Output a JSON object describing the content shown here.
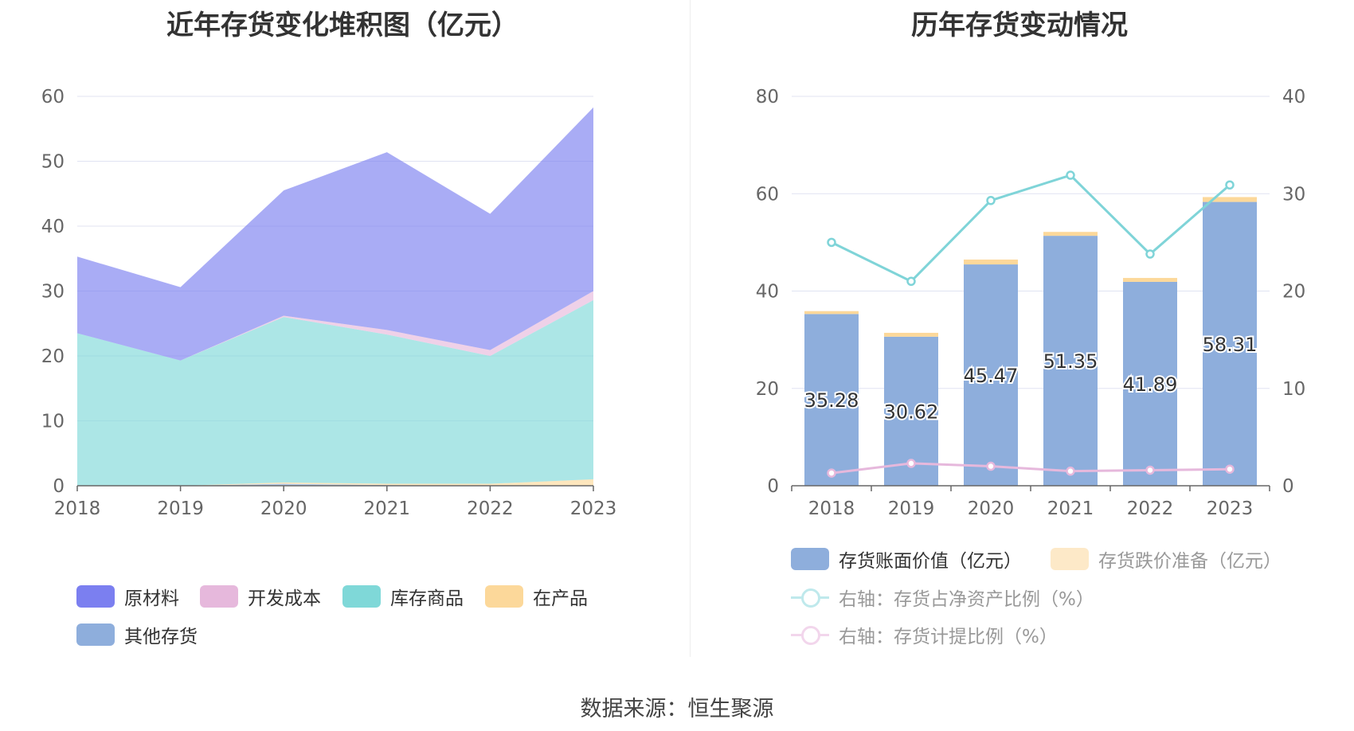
{
  "left": {
    "title": "近年存货变化堆积图（亿元）",
    "legend": [
      {
        "label": "原材料",
        "color": "#7b7ff0"
      },
      {
        "label": "开发成本",
        "color": "#e6b8dc"
      },
      {
        "label": "库存商品",
        "color": "#7fd8d8"
      },
      {
        "label": "在产品",
        "color": "#fcd89a"
      },
      {
        "label": "其他存货",
        "color": "#8eaedc"
      }
    ]
  },
  "right": {
    "title": "历年存货变动情况",
    "legend": {
      "bar1": "存货账面价值（亿元）",
      "bar2": "存货跌价准备（亿元）",
      "line1": "右轴：存货占净资产比例（%）",
      "line2": "右轴：存货计提比例（%）"
    }
  },
  "source": "数据来源：恒生聚源",
  "chart_data": [
    {
      "type": "area",
      "stacked": true,
      "title": "近年存货变化堆积图（亿元）",
      "x": [
        "2018",
        "2019",
        "2020",
        "2021",
        "2022",
        "2023"
      ],
      "ylim": [
        0,
        60
      ],
      "yticks": [
        0,
        10,
        20,
        30,
        40,
        50,
        60
      ],
      "grid": true,
      "legend_position": "bottom",
      "series": [
        {
          "name": "其他存货",
          "color": "#8eaedc",
          "values": [
            0,
            0,
            0.3,
            0.1,
            0,
            0
          ]
        },
        {
          "name": "在产品",
          "color": "#fcd89a",
          "values": [
            0,
            0,
            0.2,
            0.2,
            0.3,
            1.0
          ]
        },
        {
          "name": "库存商品",
          "color": "#7fd8d8",
          "values": [
            23.5,
            19.3,
            25.5,
            23.0,
            19.7,
            27.6
          ]
        },
        {
          "name": "开发成本",
          "color": "#e6b8dc",
          "values": [
            0,
            0,
            0.2,
            0.7,
            0.9,
            1.4
          ]
        },
        {
          "name": "原材料",
          "color": "#7b7ff0",
          "values": [
            11.8,
            11.3,
            19.3,
            27.4,
            21.0,
            28.3
          ]
        }
      ]
    },
    {
      "type": "bar",
      "stacked": true,
      "title": "历年存货变动情况",
      "categories": [
        "2018",
        "2019",
        "2020",
        "2021",
        "2022",
        "2023"
      ],
      "ylim": [
        0,
        80
      ],
      "yticks": [
        0,
        20,
        40,
        60,
        80
      ],
      "y2lim": [
        0,
        40
      ],
      "y2ticks": [
        0,
        10,
        20,
        30,
        40
      ],
      "grid": true,
      "legend_position": "bottom",
      "series": [
        {
          "name": "存货账面价值（亿元）",
          "axis": "left",
          "color": "#8eaedc",
          "values": [
            35.28,
            30.62,
            45.47,
            51.35,
            41.89,
            58.31
          ],
          "labels": [
            "35.28",
            "30.62",
            "45.47",
            "51.35",
            "41.89",
            "58.31"
          ]
        },
        {
          "name": "存货跌价准备（亿元）",
          "axis": "left",
          "color": "#fcd89a",
          "values": [
            0.6,
            0.8,
            1.0,
            0.8,
            0.8,
            1.0
          ]
        },
        {
          "name": "右轴：存货占净资产比例（%）",
          "axis": "right",
          "type": "line",
          "color": "#7fd4d8",
          "values": [
            25.0,
            21.0,
            29.3,
            31.9,
            23.8,
            30.9
          ]
        },
        {
          "name": "右轴：存货计提比例（%）",
          "axis": "right",
          "type": "line",
          "color": "#e6b8dc",
          "values": [
            1.3,
            2.3,
            2.0,
            1.5,
            1.6,
            1.7
          ]
        }
      ]
    }
  ]
}
